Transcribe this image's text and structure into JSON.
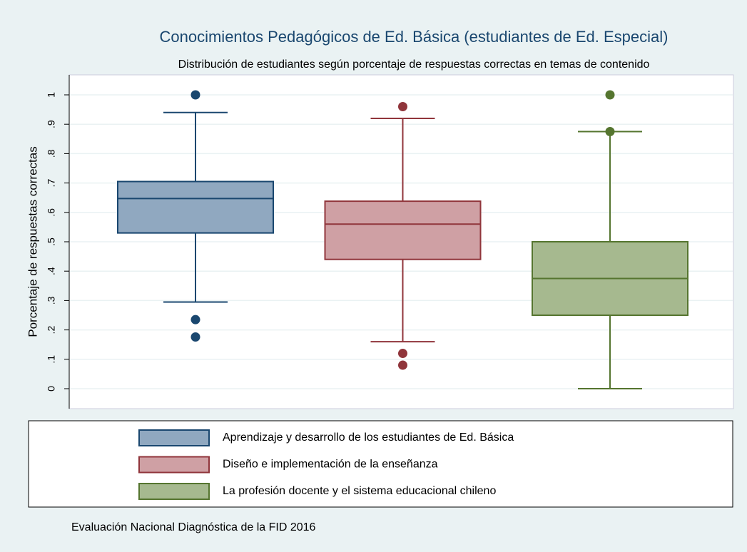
{
  "chart_data": {
    "type": "box",
    "title": "Conocimientos Pedagógicos de Ed. Básica (estudiantes de Ed. Especial)",
    "subtitle": "Distribución de estudiantes según porcentaje de respuestas correctas en temas de contenido",
    "ylabel": "Porcentaje de respuestas correctas",
    "note": "Evaluación Nacional Diagnóstica de la FID 2016",
    "ylim": [
      0,
      1
    ],
    "yticks": [
      0,
      {
        "value": 0.1,
        "label": ".1"
      },
      {
        "value": 0.2,
        "label": ".2"
      },
      {
        "value": 0.3,
        "label": ".3"
      },
      {
        "value": 0.4,
        "label": ".4"
      },
      {
        "value": 0.5,
        "label": ".5"
      },
      {
        "value": 0.6,
        "label": ".6"
      },
      {
        "value": 0.7,
        "label": ".7"
      },
      {
        "value": 0.8,
        "label": ".8"
      },
      {
        "value": 0.9,
        "label": ".9"
      },
      1
    ],
    "grid": true,
    "series": [
      {
        "name": "Aprendizaje y desarrollo de los estudiantes de Ed. Básica",
        "color": "#1a476f",
        "fill": "#90a8c0",
        "low": 0.295,
        "q1": 0.53,
        "median": 0.647,
        "q3": 0.705,
        "high": 0.94,
        "outliers": [
          1.0,
          0.235,
          0.176
        ]
      },
      {
        "name": "Diseño e implementación de la enseñanza",
        "color": "#90353b",
        "fill": "#cfa0a4",
        "low": 0.16,
        "q1": 0.44,
        "median": 0.56,
        "q3": 0.638,
        "high": 0.92,
        "outliers": [
          0.96,
          0.12,
          0.08
        ]
      },
      {
        "name": "La profesión docente y el sistema educacional chileno",
        "color": "#55752f",
        "fill": "#a6b98f",
        "low": 0,
        "q1": 0.25,
        "median": 0.375,
        "q3": 0.5,
        "high": 0.875,
        "outliers": [
          1.0,
          0.875
        ]
      }
    ]
  }
}
